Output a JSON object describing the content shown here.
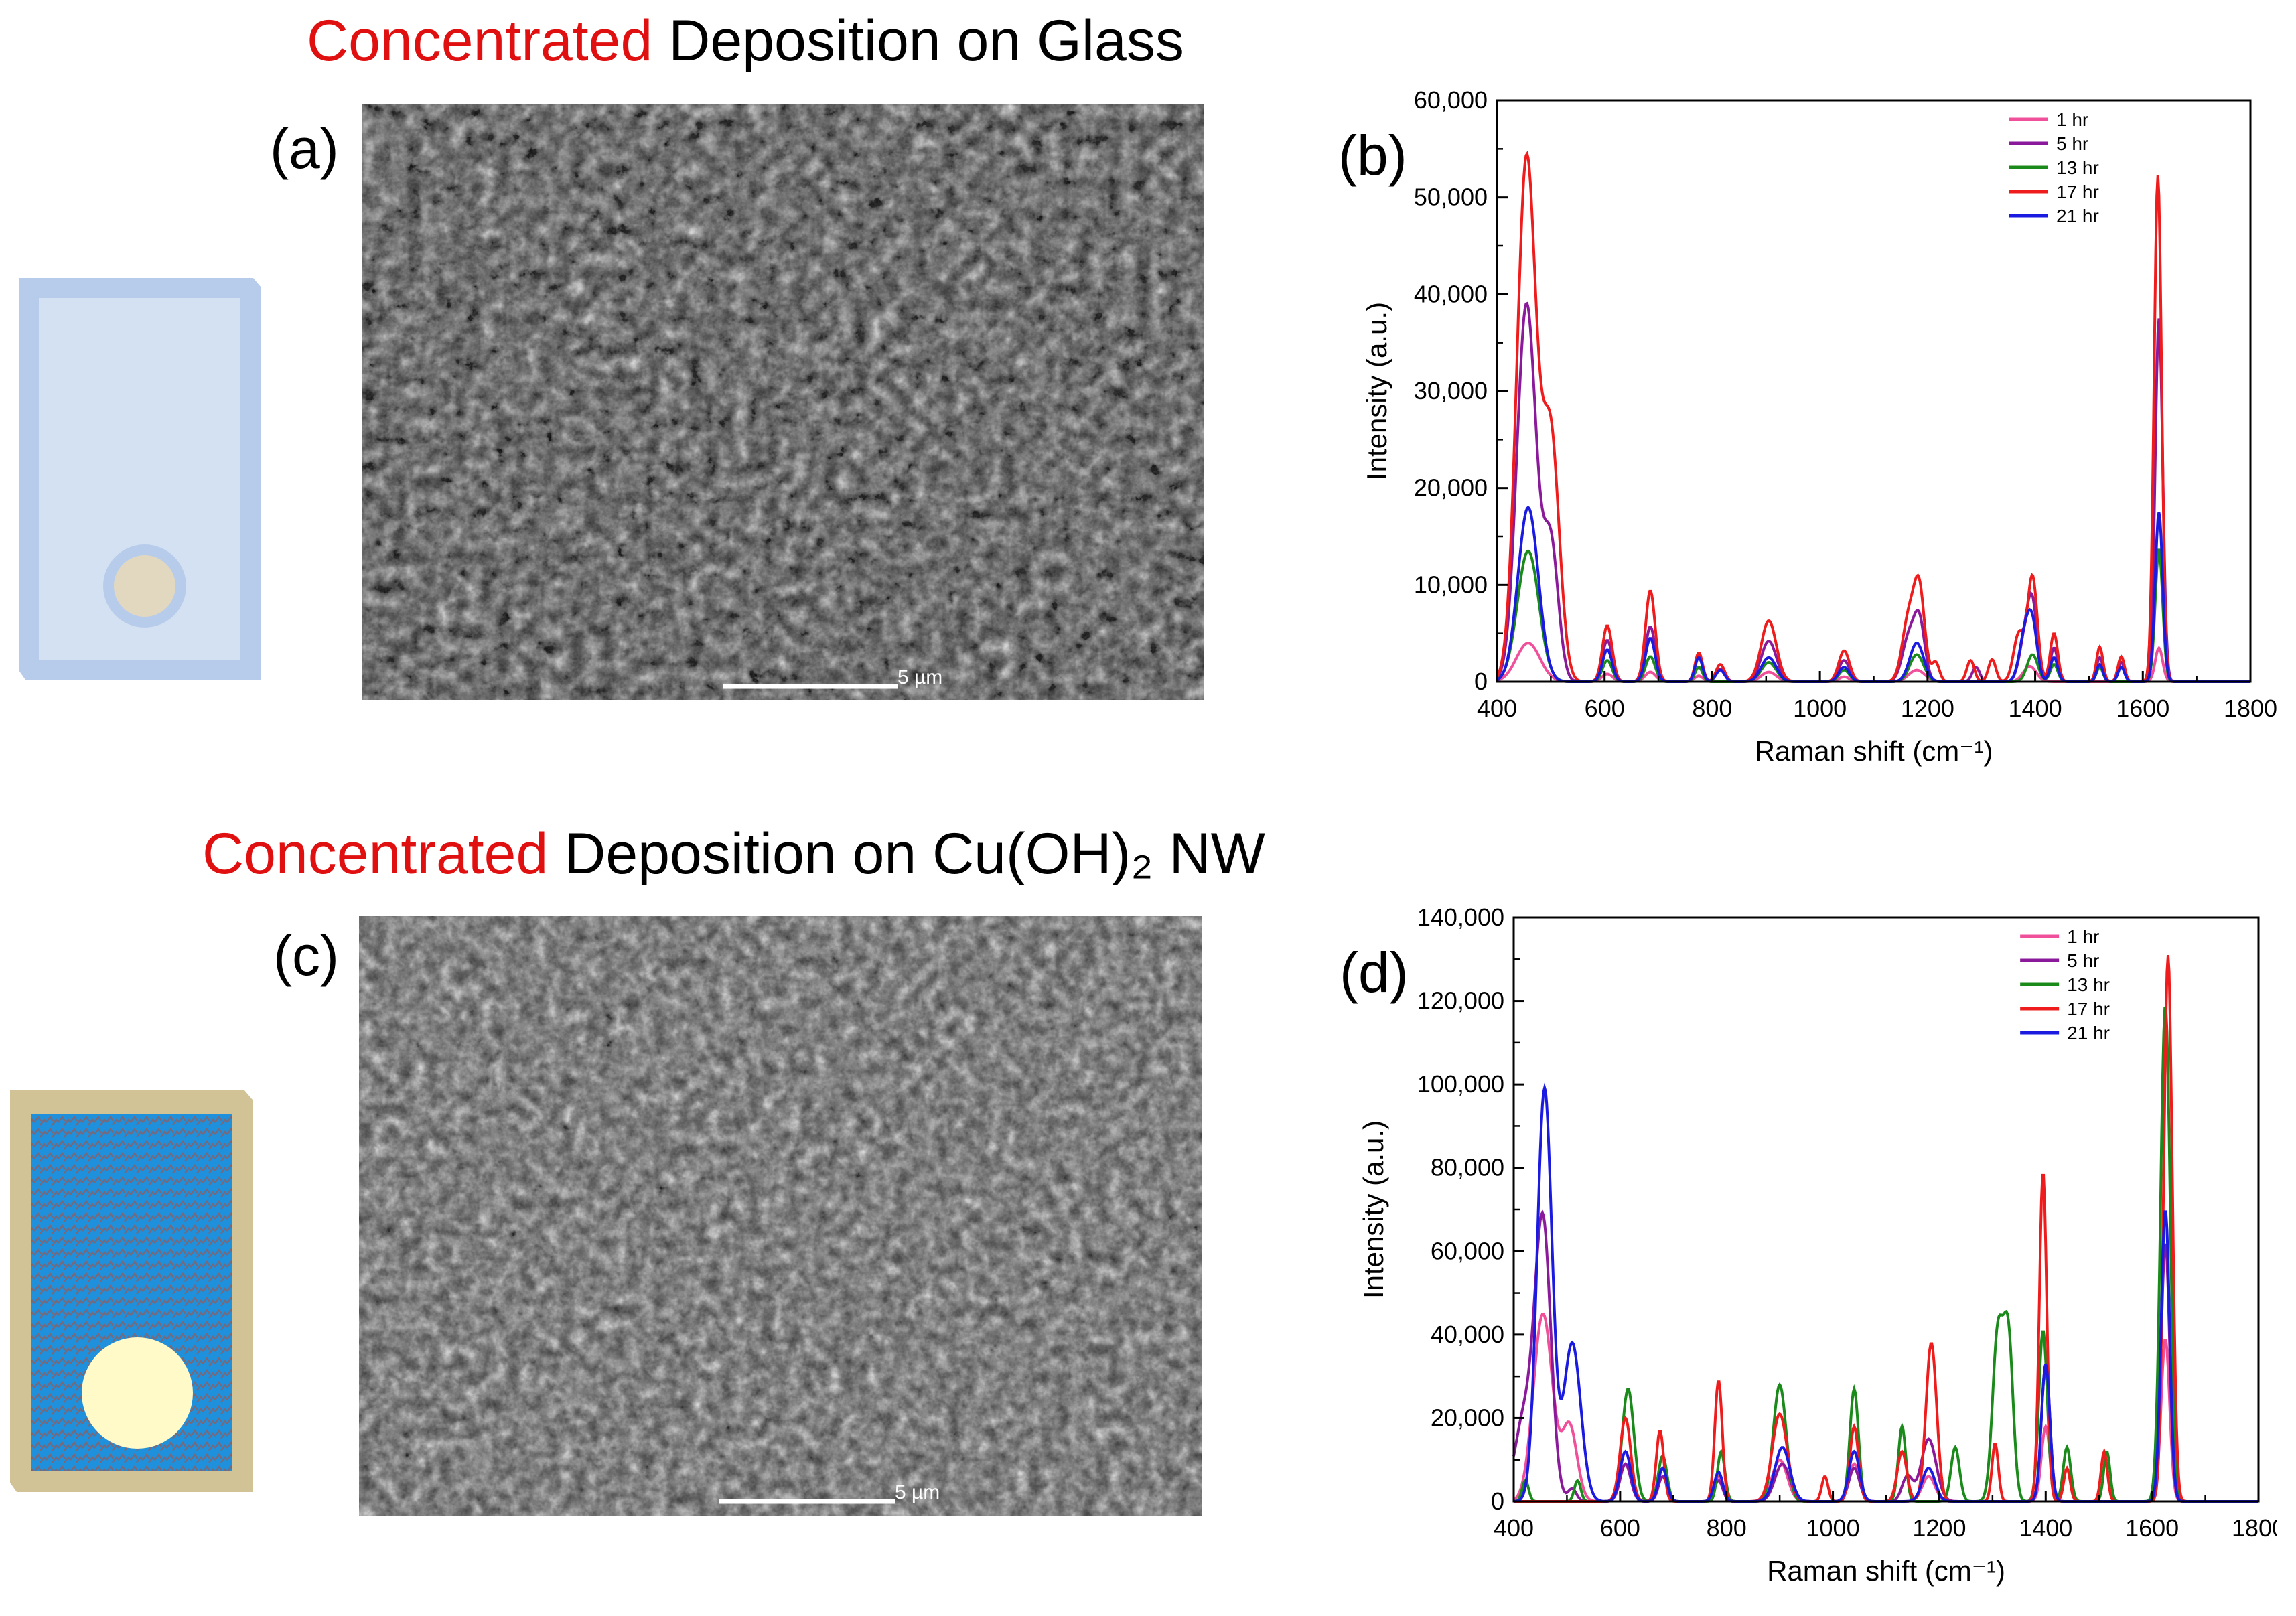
{
  "colors": {
    "highlight": "#e01010",
    "s1": "#f0509a",
    "s5": "#8a1a9a",
    "s13": "#1a8a1a",
    "s17": "#ee1c1c",
    "s21": "#1a1ae0"
  },
  "sections": [
    {
      "title_highlight": "Concentrated",
      "title_rest": " Deposition on Glass",
      "sem_label": "(a)",
      "chart_label": "(b)",
      "scalebar": "5 µm"
    },
    {
      "title_highlight": "Concentrated",
      "title_rest": " Deposition on Cu(OH)₂ NW",
      "sem_label": "(c)",
      "chart_label": "(d)",
      "scalebar": "5 µm"
    }
  ],
  "chart_data": [
    {
      "type": "line",
      "xlabel": "Raman shift (cm⁻¹)",
      "ylabel": "Intensity (a.u.)",
      "xlim": [
        400,
        1800
      ],
      "ylim": [
        0,
        60000
      ],
      "xticks": [
        "400",
        "600",
        "800",
        "1000",
        "1200",
        "1400",
        "1600",
        "1800"
      ],
      "yticks": [
        "0",
        "10,000",
        "20,000",
        "30,000",
        "40,000",
        "50,000",
        "60,000"
      ],
      "legend_position": "top-right",
      "series": [
        {
          "name": "1 hr",
          "color": "#f0509a",
          "peaks": [
            [
              458,
              4000,
              22
            ],
            [
              605,
              800,
              10
            ],
            [
              685,
              1000,
              10
            ],
            [
              775,
              600,
              8
            ],
            [
              905,
              1000,
              14
            ],
            [
              1045,
              500,
              10
            ],
            [
              1180,
              1200,
              15
            ],
            [
              1390,
              1600,
              12
            ],
            [
              1630,
              3500,
              7
            ]
          ]
        },
        {
          "name": "5 hr",
          "color": "#8a1a9a",
          "peaks": [
            [
              455,
              39000,
              18
            ],
            [
              500,
              14000,
              14
            ],
            [
              605,
              4300,
              9
            ],
            [
              685,
              5700,
              9
            ],
            [
              775,
              2700,
              7
            ],
            [
              815,
              1300,
              8
            ],
            [
              905,
              4200,
              14
            ],
            [
              1045,
              2200,
              10
            ],
            [
              1165,
              4500,
              12
            ],
            [
              1185,
              6000,
              10
            ],
            [
              1290,
              1500,
              7
            ],
            [
              1380,
              4000,
              10
            ],
            [
              1395,
              7600,
              9
            ],
            [
              1435,
              3500,
              7
            ],
            [
              1520,
              2500,
              6
            ],
            [
              1560,
              2000,
              6
            ],
            [
              1630,
              37500,
              7
            ]
          ]
        },
        {
          "name": "13 hr",
          "color": "#1a8a1a",
          "peaks": [
            [
              458,
              13500,
              20
            ],
            [
              605,
              2200,
              9
            ],
            [
              685,
              2600,
              9
            ],
            [
              775,
              1500,
              7
            ],
            [
              905,
              2000,
              14
            ],
            [
              1045,
              1200,
              10
            ],
            [
              1180,
              2800,
              13
            ],
            [
              1395,
              2800,
              10
            ],
            [
              1435,
              1800,
              7
            ],
            [
              1520,
              1500,
              6
            ],
            [
              1630,
              13700,
              7
            ]
          ]
        },
        {
          "name": "17 hr",
          "color": "#ee1c1c",
          "peaks": [
            [
              455,
              54000,
              18
            ],
            [
              500,
              25000,
              16
            ],
            [
              605,
              5800,
              9
            ],
            [
              685,
              9400,
              9
            ],
            [
              775,
              3000,
              7
            ],
            [
              815,
              1800,
              8
            ],
            [
              905,
              6300,
              14
            ],
            [
              1045,
              3200,
              10
            ],
            [
              1165,
              6500,
              12
            ],
            [
              1185,
              9000,
              10
            ],
            [
              1215,
              2000,
              7
            ],
            [
              1280,
              2200,
              7
            ],
            [
              1320,
              2300,
              7
            ],
            [
              1370,
              5000,
              10
            ],
            [
              1395,
              10800,
              9
            ],
            [
              1435,
              5000,
              7
            ],
            [
              1520,
              3600,
              6
            ],
            [
              1560,
              2600,
              6
            ],
            [
              1628,
              52300,
              7
            ]
          ]
        },
        {
          "name": "21 hr",
          "color": "#1a1ae0",
          "peaks": [
            [
              458,
              18000,
              19
            ],
            [
              605,
              3300,
              9
            ],
            [
              685,
              4500,
              9
            ],
            [
              775,
              2500,
              7
            ],
            [
              815,
              1200,
              8
            ],
            [
              905,
              2500,
              14
            ],
            [
              1045,
              1500,
              10
            ],
            [
              1180,
              4000,
              13
            ],
            [
              1380,
              4500,
              10
            ],
            [
              1395,
              5500,
              9
            ],
            [
              1435,
              2500,
              7
            ],
            [
              1520,
              1800,
              6
            ],
            [
              1560,
              1500,
              6
            ],
            [
              1630,
              17500,
              7
            ]
          ]
        }
      ]
    },
    {
      "type": "line",
      "xlabel": "Raman shift (cm⁻¹)",
      "ylabel": "Intensity (a.u.)",
      "xlim": [
        400,
        1800
      ],
      "ylim": [
        0,
        140000
      ],
      "xticks": [
        "400",
        "600",
        "800",
        "1000",
        "1200",
        "1400",
        "1600",
        "1800"
      ],
      "yticks": [
        "0",
        "20,000",
        "40,000",
        "60,000",
        "80,000",
        "100,000",
        "120,000",
        "140,000"
      ],
      "legend_position": "top-right",
      "series": [
        {
          "name": "1 hr",
          "color": "#f0509a",
          "peaks": [
            [
              455,
              45000,
              18
            ],
            [
              505,
              18000,
              14
            ],
            [
              610,
              9000,
              10
            ],
            [
              680,
              8000,
              8
            ],
            [
              785,
              6000,
              8
            ],
            [
              900,
              10000,
              14
            ],
            [
              1040,
              9000,
              10
            ],
            [
              1180,
              6000,
              12
            ],
            [
              1400,
              18000,
              8
            ],
            [
              1625,
              39000,
              8
            ]
          ]
        },
        {
          "name": "5 hr",
          "color": "#8a1a9a",
          "peaks": [
            [
              420,
              20000,
              18
            ],
            [
              455,
              66000,
              15
            ],
            [
              510,
              3000,
              8
            ],
            [
              610,
              9000,
              10
            ],
            [
              680,
              6000,
              8
            ],
            [
              785,
              5000,
              8
            ],
            [
              905,
              9000,
              14
            ],
            [
              1040,
              8000,
              10
            ],
            [
              1140,
              6000,
              10
            ],
            [
              1180,
              15000,
              14
            ],
            [
              1400,
              33000,
              8
            ],
            [
              1625,
              62000,
              8
            ]
          ]
        },
        {
          "name": "13 hr",
          "color": "#1a8a1a",
          "peaks": [
            [
              422,
              5000,
              6
            ],
            [
              520,
              5000,
              6
            ],
            [
              615,
              27000,
              11
            ],
            [
              680,
              11000,
              8
            ],
            [
              790,
              12000,
              7
            ],
            [
              900,
              28000,
              12
            ],
            [
              1040,
              27000,
              8
            ],
            [
              1130,
              18000,
              7
            ],
            [
              1230,
              13000,
              8
            ],
            [
              1310,
              40000,
              10
            ],
            [
              1330,
              38000,
              9
            ],
            [
              1395,
              41000,
              8
            ],
            [
              1440,
              13000,
              7
            ],
            [
              1515,
              12000,
              6
            ],
            [
              1625,
              119000,
              9
            ]
          ]
        },
        {
          "name": "17 hr",
          "color": "#ee1c1c",
          "peaks": [
            [
              610,
              20000,
              10
            ],
            [
              675,
              17000,
              7
            ],
            [
              785,
              29000,
              7
            ],
            [
              900,
              21000,
              14
            ],
            [
              985,
              6000,
              6
            ],
            [
              1040,
              18000,
              8
            ],
            [
              1130,
              12000,
              9
            ],
            [
              1185,
              38000,
              10
            ],
            [
              1305,
              14000,
              6
            ],
            [
              1395,
              79000,
              7
            ],
            [
              1440,
              8000,
              6
            ],
            [
              1510,
              12000,
              6
            ],
            [
              1630,
              131000,
              8
            ]
          ]
        },
        {
          "name": "21 hr",
          "color": "#1a1ae0",
          "peaks": [
            [
              458,
              99000,
              14
            ],
            [
              510,
              38000,
              16
            ],
            [
              610,
              12000,
              10
            ],
            [
              680,
              8000,
              8
            ],
            [
              785,
              7000,
              8
            ],
            [
              905,
              13000,
              14
            ],
            [
              1040,
              12000,
              10
            ],
            [
              1180,
              8000,
              12
            ],
            [
              1400,
              33000,
              8
            ],
            [
              1625,
              70000,
              8
            ]
          ]
        }
      ]
    }
  ]
}
